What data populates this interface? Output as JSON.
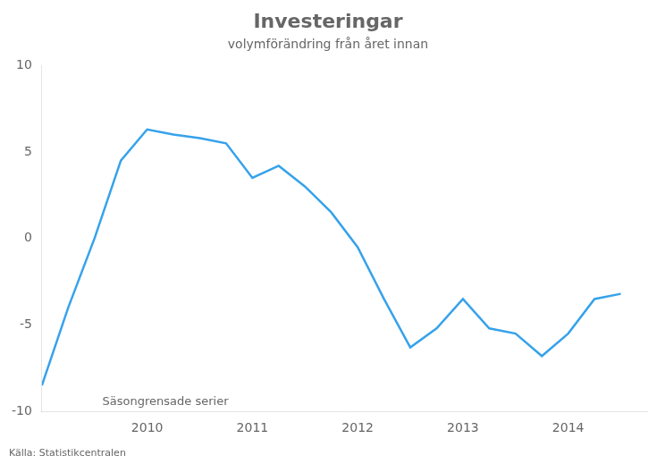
{
  "chart_data": {
    "type": "line",
    "title": "Investeringar",
    "subtitle": "volymförändring från året innan",
    "annotation": "Säsongrensade serier",
    "source": "Källa: Statistikcentralen",
    "x": [
      2009.0,
      2009.25,
      2009.5,
      2009.75,
      2010.0,
      2010.25,
      2010.5,
      2010.75,
      2011.0,
      2011.25,
      2011.5,
      2011.75,
      2012.0,
      2012.25,
      2012.5,
      2012.75,
      2013.0,
      2013.25,
      2013.5,
      2013.75,
      2014.0,
      2014.25,
      2014.5
    ],
    "values": [
      -8.5,
      -4.0,
      0.0,
      4.5,
      6.3,
      6.0,
      5.8,
      5.5,
      3.5,
      4.2,
      3.0,
      1.5,
      -0.5,
      -3.5,
      -6.3,
      -5.2,
      -3.5,
      -5.2,
      -5.5,
      -6.8,
      -5.5,
      -3.5,
      -3.2
    ],
    "xlim": [
      2009.0,
      2014.75
    ],
    "ylim": [
      -10,
      10
    ],
    "xticks": [
      2010,
      2011,
      2012,
      2013,
      2014
    ],
    "yticks": [
      -10,
      -5,
      0,
      5,
      10
    ],
    "grid": false
  }
}
